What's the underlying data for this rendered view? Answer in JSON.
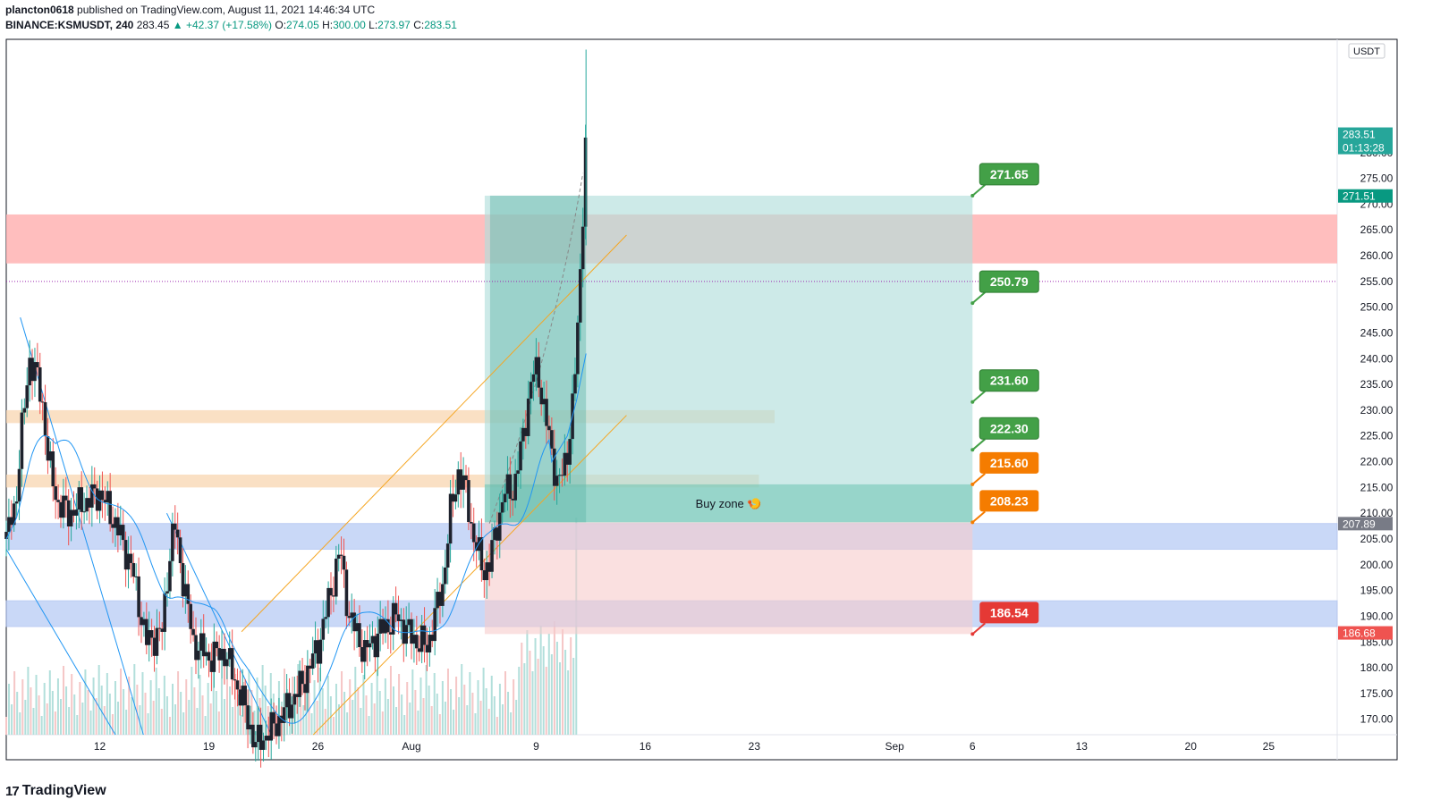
{
  "header": {
    "author": "plancton0618",
    "published": "published on TradingView.com, August 11, 2021 14:46:34 UTC",
    "symbol": "BINANCE:KSMUSDT, 240",
    "last": "283.45",
    "change": "▲ +42.37 (+17.58%)",
    "o_label": "O:",
    "o_value": "274.05",
    "h_label": "H:",
    "h_value": "300.00",
    "l_label": "L:",
    "l_value": "273.97",
    "c_label": "C:",
    "c_value": "283.51"
  },
  "footer": {
    "logo_mark": "17",
    "logo_text": "TradingView"
  },
  "colors": {
    "up": "#26a69a",
    "down": "#ef5350",
    "candle_body": "#1e222d",
    "resistance_zone": "#ffb3b3",
    "support_zone": "#b7cbf5",
    "minor_zone": "#f8d6b0",
    "target_area": "#b2dfdb",
    "stop_area": "#f7cccc",
    "ma_line": "#2196f3",
    "trendline": "#2196f3",
    "channel": "#f5a623",
    "green_label": "#43a047",
    "orange_label": "#f57c00",
    "red_label": "#e53935"
  },
  "chart_data": {
    "type": "candlestick",
    "title": "BINANCE:KSMUSDT, 240",
    "currency": "USDT",
    "ylim": [
      167,
      302
    ],
    "y_ticks": [
      170,
      175,
      180,
      185,
      190,
      195,
      200,
      205,
      210,
      215,
      220,
      225,
      230,
      235,
      240,
      245,
      250,
      255,
      260,
      265,
      270,
      275,
      280
    ],
    "x_ticks": [
      {
        "label": "12",
        "day": 12
      },
      {
        "label": "19",
        "day": 19
      },
      {
        "label": "26",
        "day": 26
      },
      {
        "label": "Aug",
        "day": 32
      },
      {
        "label": "9",
        "day": 40
      },
      {
        "label": "16",
        "day": 47
      },
      {
        "label": "23",
        "day": 54
      },
      {
        "label": "Sep",
        "day": 63
      },
      {
        "label": "6",
        "day": 68
      },
      {
        "label": "13",
        "day": 75
      },
      {
        "label": "20",
        "day": 82
      },
      {
        "label": "25",
        "day": 87
      }
    ],
    "candles_day_range": [
      6,
      42.4
    ],
    "price_path": [
      [
        6,
        205
      ],
      [
        6.6,
        212
      ],
      [
        7,
        226
      ],
      [
        7.5,
        240
      ],
      [
        8,
        236
      ],
      [
        8.4,
        230
      ],
      [
        8.7,
        220
      ],
      [
        9.3,
        212
      ],
      [
        10,
        210
      ],
      [
        11,
        212
      ],
      [
        12,
        214
      ],
      [
        13,
        208
      ],
      [
        14,
        200
      ],
      [
        15,
        185
      ],
      [
        16,
        187
      ],
      [
        16.4,
        200
      ],
      [
        16.8,
        208
      ],
      [
        17.4,
        196
      ],
      [
        18,
        185
      ],
      [
        19,
        182
      ],
      [
        20,
        183
      ],
      [
        21,
        175
      ],
      [
        22,
        165
      ],
      [
        23,
        168
      ],
      [
        24,
        172
      ],
      [
        25,
        177
      ],
      [
        26,
        184
      ],
      [
        27,
        197
      ],
      [
        27.4,
        203
      ],
      [
        28,
        190
      ],
      [
        29,
        183
      ],
      [
        30,
        187
      ],
      [
        31,
        190
      ],
      [
        32,
        186
      ],
      [
        33,
        184
      ],
      [
        34,
        196
      ],
      [
        34.5,
        210
      ],
      [
        35,
        218
      ],
      [
        35.5,
        214
      ],
      [
        36,
        205
      ],
      [
        36.6,
        199
      ],
      [
        37,
        200
      ],
      [
        37.5,
        208
      ],
      [
        38,
        214
      ],
      [
        38.6,
        215
      ],
      [
        39,
        222
      ],
      [
        39.4,
        230
      ],
      [
        39.8,
        237
      ],
      [
        40.1,
        238
      ],
      [
        40.5,
        230
      ],
      [
        41,
        222
      ],
      [
        41.4,
        215
      ],
      [
        41.7,
        218
      ],
      [
        42,
        222
      ],
      [
        42.4,
        232
      ],
      [
        42.7,
        248
      ],
      [
        42.9,
        262
      ],
      [
        43.2,
        283.51
      ]
    ],
    "moving_average_end": [
      [
        41,
        220
      ],
      [
        42,
        225
      ],
      [
        42.6,
        232
      ],
      [
        43.2,
        241
      ]
    ],
    "zones": [
      {
        "name": "resistance",
        "from": 258.5,
        "to": 268
      },
      {
        "name": "mid",
        "from": 227.5,
        "to": 230
      },
      {
        "name": "minor",
        "from": 215,
        "to": 217.5
      },
      {
        "name": "support-1",
        "from": 203,
        "to": 208
      },
      {
        "name": "support-2",
        "from": 188,
        "to": 193
      }
    ],
    "position": {
      "entry": 208.23,
      "target": 271.65,
      "stop": 186.54,
      "start_day": 36.7,
      "end_day": 68,
      "buy_zone_from": 208.23,
      "buy_zone_to": 215.6,
      "buy_zone_label": "Buy zone 🍤"
    },
    "dotted_level": 255,
    "price_labels": [
      {
        "value": "271.65",
        "price": 271.65,
        "color": "green"
      },
      {
        "value": "250.79",
        "price": 250.79,
        "color": "green"
      },
      {
        "value": "231.60",
        "price": 231.6,
        "color": "green"
      },
      {
        "value": "222.30",
        "price": 222.3,
        "color": "green"
      },
      {
        "value": "215.60",
        "price": 215.6,
        "color": "orange"
      },
      {
        "value": "208.23",
        "price": 208.23,
        "color": "orange"
      },
      {
        "value": "186.54",
        "price": 186.54,
        "color": "red"
      }
    ],
    "axis_badges": [
      {
        "value": "283.51",
        "sub": "01:13:28",
        "price": 283.51,
        "color": "#26a69a"
      },
      {
        "value": "271.51",
        "sub": "",
        "price": 271.51,
        "color": "#089981"
      },
      {
        "value": "207.89",
        "sub": "",
        "price": 207.89,
        "color": "#787b86"
      },
      {
        "value": "186.68",
        "sub": "",
        "price": 186.68,
        "color": "#ef5350"
      }
    ]
  }
}
